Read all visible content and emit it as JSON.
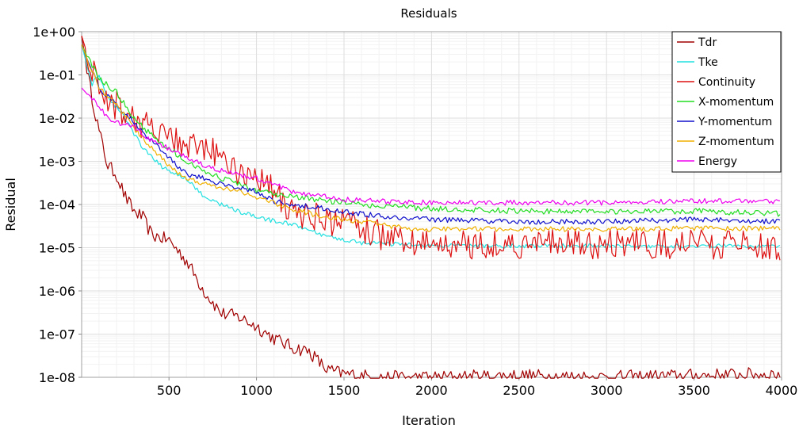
{
  "chart_data": {
    "type": "line",
    "title": "Residuals",
    "xlabel": "Iteration",
    "ylabel": "Residual",
    "xlim": [
      1,
      4000
    ],
    "ylim": [
      1e-08,
      1
    ],
    "yscale": "log",
    "x_ticks": [
      500,
      1000,
      1500,
      2000,
      2500,
      3000,
      3500,
      4000
    ],
    "y_ticks": [
      {
        "value": 1.0,
        "label": "1e+00"
      },
      {
        "value": 0.1,
        "label": "1e-01"
      },
      {
        "value": 0.01,
        "label": "1e-02"
      },
      {
        "value": 0.001,
        "label": "1e-03"
      },
      {
        "value": 0.0001,
        "label": "1e-04"
      },
      {
        "value": 1e-05,
        "label": "1e-05"
      },
      {
        "value": 1e-06,
        "label": "1e-06"
      },
      {
        "value": 1e-07,
        "label": "1e-07"
      },
      {
        "value": 1e-08,
        "label": "1e-08"
      }
    ],
    "grid": true,
    "legend_position": "top-right",
    "series": [
      {
        "name": "Tdr",
        "color": "#a00000",
        "noise": 0.16,
        "points": [
          [
            1,
            0.8
          ],
          [
            50,
            0.05
          ],
          [
            100,
            0.005
          ],
          [
            150,
            0.0008
          ],
          [
            200,
            0.0005
          ],
          [
            250,
            0.00015
          ],
          [
            300,
            7e-05
          ],
          [
            350,
            5e-05
          ],
          [
            400,
            2e-05
          ],
          [
            500,
            1.5e-05
          ],
          [
            600,
            5e-06
          ],
          [
            700,
            1e-06
          ],
          [
            800,
            3e-07
          ],
          [
            900,
            2.5e-07
          ],
          [
            1000,
            1.5e-07
          ],
          [
            1100,
            8e-08
          ],
          [
            1200,
            5e-08
          ],
          [
            1300,
            4e-08
          ],
          [
            1400,
            1.5e-08
          ],
          [
            1500,
            1.2e-08
          ],
          [
            1700,
            1e-08
          ],
          [
            2000,
            1e-08
          ],
          [
            2500,
            1.1e-08
          ],
          [
            3000,
            1e-08
          ],
          [
            3500,
            1.1e-08
          ],
          [
            4000,
            1.2e-08
          ]
        ]
      },
      {
        "name": "Tke",
        "color": "#22e0e0",
        "noise": 0.05,
        "points": [
          [
            1,
            0.5
          ],
          [
            60,
            0.06
          ],
          [
            100,
            0.1
          ],
          [
            150,
            0.03
          ],
          [
            250,
            0.01
          ],
          [
            350,
            0.002
          ],
          [
            450,
            0.0008
          ],
          [
            500,
            0.0006
          ],
          [
            600,
            0.0004
          ],
          [
            700,
            0.00015
          ],
          [
            800,
            0.0001
          ],
          [
            900,
            7e-05
          ],
          [
            1000,
            5e-05
          ],
          [
            1200,
            3.5e-05
          ],
          [
            1400,
            1.8e-05
          ],
          [
            1600,
            1.3e-05
          ],
          [
            1800,
            1.2e-05
          ],
          [
            2000,
            1.1e-05
          ],
          [
            2500,
            1.1e-05
          ],
          [
            3000,
            1.1e-05
          ],
          [
            3500,
            1.1e-05
          ],
          [
            4000,
            1.1e-05
          ]
        ]
      },
      {
        "name": "Continuity",
        "color": "#dd1111",
        "noise": 0.35,
        "points": [
          [
            1,
            0.8
          ],
          [
            100,
            0.04
          ],
          [
            200,
            0.02
          ],
          [
            300,
            0.01
          ],
          [
            400,
            0.005
          ],
          [
            500,
            0.004
          ],
          [
            600,
            0.002
          ],
          [
            700,
            0.002
          ],
          [
            800,
            0.0012
          ],
          [
            900,
            0.0006
          ],
          [
            1000,
            0.0005
          ],
          [
            1100,
            0.0002
          ],
          [
            1200,
            6e-05
          ],
          [
            1300,
            6e-05
          ],
          [
            1400,
            4e-05
          ],
          [
            1500,
            4e-05
          ],
          [
            1600,
            3e-05
          ],
          [
            1700,
            2e-05
          ],
          [
            1800,
            1.5e-05
          ],
          [
            1900,
            1.2e-05
          ],
          [
            2000,
            1.2e-05
          ],
          [
            2500,
            1.2e-05
          ],
          [
            3000,
            1.2e-05
          ],
          [
            3500,
            1.2e-05
          ],
          [
            4000,
            1.1e-05
          ]
        ]
      },
      {
        "name": "X-momentum",
        "color": "#22dd22",
        "noise": 0.07,
        "points": [
          [
            1,
            0.5
          ],
          [
            100,
            0.08
          ],
          [
            200,
            0.04
          ],
          [
            300,
            0.01
          ],
          [
            400,
            0.004
          ],
          [
            500,
            0.002
          ],
          [
            600,
            0.001
          ],
          [
            700,
            0.0006
          ],
          [
            800,
            0.0004
          ],
          [
            900,
            0.0003
          ],
          [
            1000,
            0.0002
          ],
          [
            1200,
            0.00015
          ],
          [
            1400,
            0.00012
          ],
          [
            1600,
            0.0001
          ],
          [
            1800,
            9e-05
          ],
          [
            2000,
            8e-05
          ],
          [
            2500,
            7e-05
          ],
          [
            3000,
            7e-05
          ],
          [
            3500,
            7e-05
          ],
          [
            4000,
            6e-05
          ]
        ]
      },
      {
        "name": "Y-momentum",
        "color": "#1010cc",
        "noise": 0.06,
        "points": [
          [
            1,
            0.5
          ],
          [
            100,
            0.05
          ],
          [
            200,
            0.02
          ],
          [
            300,
            0.008
          ],
          [
            400,
            0.003
          ],
          [
            500,
            0.0012
          ],
          [
            600,
            0.0005
          ],
          [
            700,
            0.0004
          ],
          [
            800,
            0.0003
          ],
          [
            900,
            0.00025
          ],
          [
            1000,
            0.0002
          ],
          [
            1100,
            0.00012
          ],
          [
            1200,
            0.0001
          ],
          [
            1400,
            8e-05
          ],
          [
            1600,
            6e-05
          ],
          [
            1800,
            5e-05
          ],
          [
            2000,
            4.5e-05
          ],
          [
            2500,
            4e-05
          ],
          [
            3000,
            4e-05
          ],
          [
            3500,
            4.5e-05
          ],
          [
            4000,
            4e-05
          ]
        ]
      },
      {
        "name": "Z-momentum",
        "color": "#f0b000",
        "noise": 0.06,
        "points": [
          [
            1,
            0.5
          ],
          [
            100,
            0.05
          ],
          [
            200,
            0.02
          ],
          [
            300,
            0.006
          ],
          [
            400,
            0.002
          ],
          [
            500,
            0.0008
          ],
          [
            600,
            0.0004
          ],
          [
            700,
            0.0003
          ],
          [
            800,
            0.00025
          ],
          [
            900,
            0.0002
          ],
          [
            1000,
            0.00015
          ],
          [
            1200,
            8e-05
          ],
          [
            1400,
            5e-05
          ],
          [
            1600,
            4e-05
          ],
          [
            1800,
            3e-05
          ],
          [
            2000,
            2.7e-05
          ],
          [
            2500,
            2.7e-05
          ],
          [
            3000,
            2.7e-05
          ],
          [
            3500,
            2.8e-05
          ],
          [
            4000,
            2.8e-05
          ]
        ]
      },
      {
        "name": "Energy",
        "color": "#ee00ee",
        "noise": 0.06,
        "points": [
          [
            1,
            0.05
          ],
          [
            50,
            0.03
          ],
          [
            100,
            0.02
          ],
          [
            150,
            0.01
          ],
          [
            200,
            0.008
          ],
          [
            300,
            0.006
          ],
          [
            400,
            0.003
          ],
          [
            500,
            0.002
          ],
          [
            600,
            0.0012
          ],
          [
            700,
            0.0008
          ],
          [
            800,
            0.0006
          ],
          [
            900,
            0.0005
          ],
          [
            1000,
            0.0004
          ],
          [
            1100,
            0.0003
          ],
          [
            1200,
            0.0002
          ],
          [
            1300,
            0.00017
          ],
          [
            1400,
            0.00015
          ],
          [
            1500,
            0.00013
          ],
          [
            1700,
            0.00012
          ],
          [
            2000,
            0.00011
          ],
          [
            2500,
            0.00011
          ],
          [
            3000,
            0.00011
          ],
          [
            3500,
            0.00012
          ],
          [
            4000,
            0.00012
          ]
        ]
      }
    ]
  }
}
